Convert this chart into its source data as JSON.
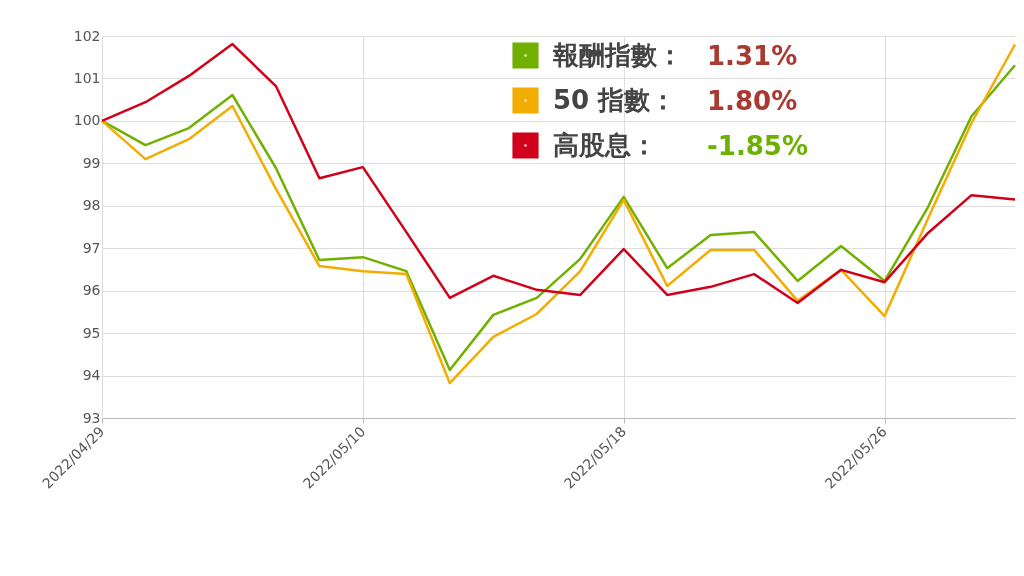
{
  "chart_data": {
    "type": "line",
    "categories": [
      "2022/04/29",
      null,
      null,
      null,
      null,
      null,
      "2022/05/10",
      null,
      null,
      null,
      null,
      null,
      "2022/05/18",
      null,
      null,
      null,
      null,
      null,
      "2022/05/26",
      null,
      null,
      null
    ],
    "series": [
      {
        "name": "報酬指數：",
        "color": "#72b000",
        "values": [
          100,
          99.43,
          99.83,
          100.61,
          98.89,
          96.72,
          96.79,
          96.46,
          94.13,
          95.43,
          95.83,
          96.75,
          98.21,
          96.53,
          97.31,
          97.38,
          96.23,
          97.05,
          96.23,
          97.97,
          100.11,
          101.31
        ]
      },
      {
        "name": "50 指數：",
        "color": "#f2ad00",
        "values": [
          100,
          99.1,
          99.57,
          100.35,
          98.4,
          96.58,
          96.46,
          96.39,
          93.82,
          94.91,
          95.45,
          96.46,
          98.14,
          96.11,
          96.96,
          96.96,
          95.76,
          96.49,
          95.4,
          97.7,
          99.95,
          101.8
        ]
      },
      {
        "name": "高股息：",
        "color": "#d0021b",
        "values": [
          100,
          100.44,
          101.06,
          101.81,
          100.82,
          98.65,
          98.91,
          97.38,
          95.83,
          96.35,
          96.02,
          95.9,
          96.98,
          95.9,
          96.09,
          96.39,
          95.71,
          96.49,
          96.2,
          97.36,
          98.25,
          98.15
        ]
      }
    ],
    "annotations": [
      "1.31%",
      "1.80%",
      "-1.85%"
    ],
    "ylim": [
      93,
      102
    ],
    "yticks": [
      93,
      94,
      95,
      96,
      97,
      98,
      99,
      100,
      101,
      102
    ],
    "grid": true,
    "legend": "top right",
    "marker": "none",
    "line_style": "solid"
  }
}
